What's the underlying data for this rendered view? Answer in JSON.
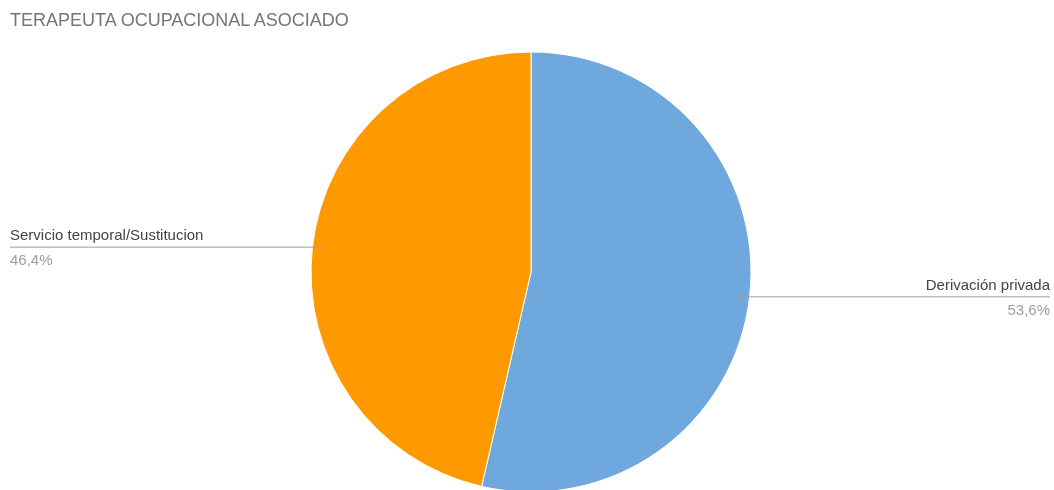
{
  "chart_data": {
    "type": "pie",
    "title": "TERAPEUTA OCUPACIONAL ASOCIADO",
    "categories": [
      "Derivación privada",
      "Servicio temporal/Sustitucion"
    ],
    "values": [
      53.6,
      46.4
    ],
    "colors": [
      "#6fa8dc",
      "#ff9900"
    ],
    "value_labels": [
      "53,6%",
      "46,4%"
    ],
    "legend": false
  }
}
